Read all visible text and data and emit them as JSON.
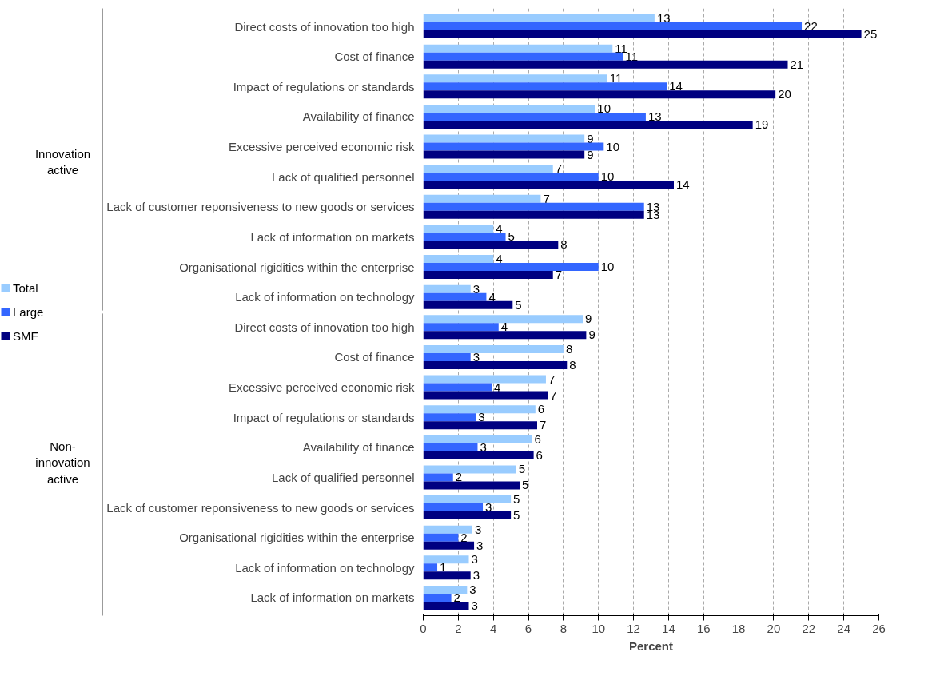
{
  "chart_data": {
    "type": "bar",
    "orientation": "horizontal",
    "xlabel": "Percent",
    "categories": [
      "Direct costs of innovation too high",
      "Cost of finance",
      "Impact of regulations or standards",
      "Availability of finance",
      "Excessive perceived economic risk",
      "Lack of qualified personnel",
      "Lack of customer reponsiveness to new goods or services",
      "Lack of information on markets",
      "Organisational rigidities within the enterprise",
      "Lack of information on technology",
      "Direct costs of innovation too high",
      "Cost of finance",
      "Excessive perceived economic risk",
      "Impact of regulations or standards",
      "Availability of finance",
      "Lack of qualified personnel",
      "Lack of customer reponsiveness to new goods or services",
      "Organisational rigidities within the enterprise",
      "Lack of information on technology",
      "Lack of information on markets"
    ],
    "series": [
      {
        "name": "Total",
        "color": "#99ccff",
        "values": [
          13.2,
          10.8,
          10.5,
          9.8,
          9.2,
          7.4,
          6.7,
          4.0,
          4.0,
          2.7,
          9.1,
          8.0,
          7.0,
          6.4,
          6.2,
          5.3,
          5.0,
          2.8,
          2.6,
          2.5
        ],
        "value_labels": [
          "13",
          "11",
          "11",
          "10",
          "9",
          "7",
          "7",
          "4",
          "4",
          "3",
          "9",
          "8",
          "7",
          "6",
          "6",
          "5",
          "5",
          "3",
          "3",
          "3"
        ]
      },
      {
        "name": "Large",
        "color": "#3366ff",
        "values": [
          21.6,
          11.4,
          13.9,
          12.7,
          10.3,
          10.0,
          12.6,
          4.7,
          10.0,
          3.6,
          4.3,
          2.7,
          3.9,
          3.0,
          3.1,
          1.7,
          3.4,
          2.0,
          0.8,
          1.6
        ],
        "value_labels": [
          "22",
          "11",
          "14",
          "13",
          "10",
          "10",
          "13",
          "5",
          "10",
          "4",
          "4",
          "3",
          "4",
          "3",
          "3",
          "2",
          "3",
          "2",
          "1",
          "2"
        ]
      },
      {
        "name": "SME",
        "color": "#000080",
        "values": [
          25.0,
          20.8,
          20.1,
          18.8,
          9.2,
          14.3,
          12.6,
          7.7,
          7.4,
          5.1,
          9.3,
          8.2,
          7.1,
          6.5,
          6.3,
          5.5,
          5.0,
          2.9,
          2.7,
          2.6
        ],
        "value_labels": [
          "25",
          "21",
          "20",
          "19",
          "9",
          "14",
          "13",
          "8",
          "7",
          "5",
          "9",
          "8",
          "7",
          "7",
          "6",
          "5",
          "5",
          "3",
          "3",
          "3"
        ]
      }
    ],
    "xlim": [
      0,
      26
    ],
    "xticks": [
      0,
      2,
      4,
      6,
      8,
      10,
      12,
      14,
      16,
      18,
      20,
      22,
      24,
      26
    ],
    "grid": "x",
    "legend": "left",
    "annotations": [
      "Innovation active",
      "Non-innovation active"
    ]
  }
}
